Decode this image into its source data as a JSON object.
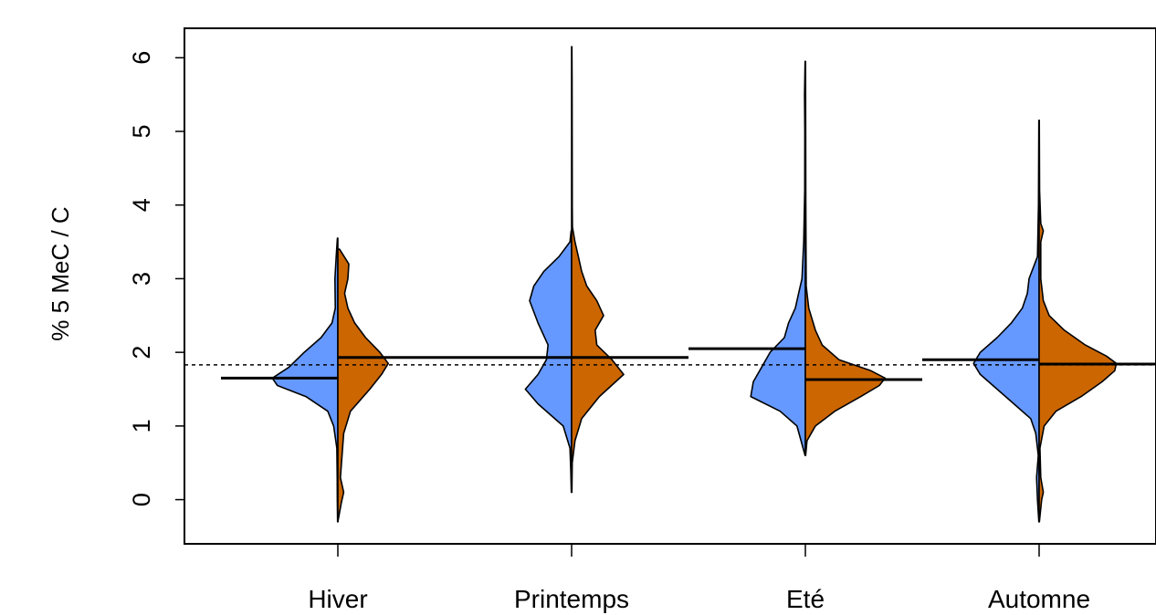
{
  "chart_data": {
    "type": "violin",
    "title": "",
    "xlabel": "",
    "ylabel": "% 5 MeC / C",
    "ylim": [
      -0.6,
      6.4
    ],
    "yticks": [
      "0",
      "1",
      "2",
      "3",
      "4",
      "5",
      "6"
    ],
    "categories": [
      "Hiver",
      "Printemps",
      "Eté",
      "Automne"
    ],
    "reference_line": 1.83,
    "grid": false,
    "colors": {
      "left": "#6699ff",
      "right": "#cc6600"
    },
    "halves": [
      {
        "category": "Hiver",
        "left": {
          "median": 1.65,
          "min": -0.3,
          "max": 3.55,
          "density": [
            [
              -0.3,
              0.003
            ],
            [
              0.0,
              0.006
            ],
            [
              0.3,
              0.008
            ],
            [
              0.7,
              0.012
            ],
            [
              1.0,
              0.05
            ],
            [
              1.2,
              0.12
            ],
            [
              1.4,
              0.38
            ],
            [
              1.55,
              0.72
            ],
            [
              1.65,
              0.78
            ],
            [
              1.8,
              0.58
            ],
            [
              2.0,
              0.4
            ],
            [
              2.2,
              0.2
            ],
            [
              2.4,
              0.07
            ],
            [
              2.6,
              0.03
            ],
            [
              3.0,
              0.035
            ],
            [
              3.3,
              0.02
            ],
            [
              3.55,
              0.005
            ]
          ]
        },
        "right": {
          "median": 1.93,
          "min": -0.3,
          "max": 3.4,
          "density": [
            [
              -0.3,
              0.0
            ],
            [
              -0.05,
              0.04
            ],
            [
              0.1,
              0.07
            ],
            [
              0.3,
              0.03
            ],
            [
              0.6,
              0.05
            ],
            [
              0.9,
              0.07
            ],
            [
              1.2,
              0.15
            ],
            [
              1.5,
              0.38
            ],
            [
              1.7,
              0.52
            ],
            [
              1.85,
              0.6
            ],
            [
              2.0,
              0.5
            ],
            [
              2.2,
              0.33
            ],
            [
              2.4,
              0.2
            ],
            [
              2.6,
              0.12
            ],
            [
              2.8,
              0.08
            ],
            [
              3.0,
              0.12
            ],
            [
              3.2,
              0.13
            ],
            [
              3.4,
              0.02
            ]
          ]
        }
      },
      {
        "category": "Printemps",
        "left": {
          "median": 1.93,
          "min": 0.1,
          "max": 3.65,
          "density": [
            [
              0.1,
              0.003
            ],
            [
              0.4,
              0.01
            ],
            [
              0.7,
              0.02
            ],
            [
              1.0,
              0.1
            ],
            [
              1.3,
              0.4
            ],
            [
              1.5,
              0.55
            ],
            [
              1.7,
              0.4
            ],
            [
              1.9,
              0.3
            ],
            [
              2.1,
              0.28
            ],
            [
              2.4,
              0.4
            ],
            [
              2.7,
              0.5
            ],
            [
              2.9,
              0.45
            ],
            [
              3.1,
              0.33
            ],
            [
              3.3,
              0.15
            ],
            [
              3.5,
              0.02
            ],
            [
              3.65,
              0.005
            ]
          ]
        },
        "right": {
          "median": 1.93,
          "min": 0.1,
          "max": 6.15,
          "density": [
            [
              0.1,
              0.003
            ],
            [
              0.5,
              0.008
            ],
            [
              0.8,
              0.04
            ],
            [
              1.1,
              0.12
            ],
            [
              1.4,
              0.33
            ],
            [
              1.7,
              0.62
            ],
            [
              1.9,
              0.48
            ],
            [
              2.1,
              0.3
            ],
            [
              2.3,
              0.28
            ],
            [
              2.5,
              0.38
            ],
            [
              2.7,
              0.3
            ],
            [
              2.9,
              0.18
            ],
            [
              3.1,
              0.12
            ],
            [
              3.3,
              0.08
            ],
            [
              3.5,
              0.04
            ],
            [
              3.7,
              0.01
            ],
            [
              4.0,
              0.008
            ],
            [
              5.0,
              0.006
            ],
            [
              5.7,
              0.005
            ],
            [
              6.15,
              0.003
            ]
          ]
        }
      },
      {
        "category": "Eté",
        "left": {
          "median": 2.05,
          "min": 0.6,
          "max": 5.95,
          "density": [
            [
              0.6,
              0.003
            ],
            [
              1.0,
              0.1
            ],
            [
              1.2,
              0.3
            ],
            [
              1.4,
              0.65
            ],
            [
              1.6,
              0.62
            ],
            [
              1.8,
              0.52
            ],
            [
              2.0,
              0.42
            ],
            [
              2.2,
              0.25
            ],
            [
              2.4,
              0.2
            ],
            [
              2.6,
              0.12
            ],
            [
              2.8,
              0.08
            ],
            [
              3.0,
              0.04
            ],
            [
              3.5,
              0.02
            ],
            [
              4.2,
              0.008
            ],
            [
              5.0,
              0.006
            ],
            [
              5.5,
              0.01
            ],
            [
              5.95,
              0.003
            ]
          ]
        },
        "right": {
          "median": 1.63,
          "min": 0.6,
          "max": 5.95,
          "density": [
            [
              0.6,
              0.003
            ],
            [
              0.8,
              0.02
            ],
            [
              1.0,
              0.12
            ],
            [
              1.2,
              0.35
            ],
            [
              1.4,
              0.66
            ],
            [
              1.55,
              0.88
            ],
            [
              1.65,
              0.95
            ],
            [
              1.75,
              0.78
            ],
            [
              1.9,
              0.4
            ],
            [
              2.1,
              0.2
            ],
            [
              2.3,
              0.12
            ],
            [
              2.6,
              0.04
            ],
            [
              2.9,
              0.01
            ],
            [
              4.0,
              0.005
            ],
            [
              5.95,
              0.002
            ]
          ]
        }
      },
      {
        "category": "Automne",
        "left": {
          "median": 1.9,
          "min": -0.3,
          "max": 5.15,
          "density": [
            [
              -0.3,
              0.003
            ],
            [
              0.0,
              0.02
            ],
            [
              0.3,
              0.03
            ],
            [
              0.6,
              0.01
            ],
            [
              0.9,
              0.04
            ],
            [
              1.1,
              0.1
            ],
            [
              1.3,
              0.3
            ],
            [
              1.5,
              0.5
            ],
            [
              1.7,
              0.7
            ],
            [
              1.85,
              0.78
            ],
            [
              2.0,
              0.7
            ],
            [
              2.2,
              0.5
            ],
            [
              2.4,
              0.33
            ],
            [
              2.6,
              0.2
            ],
            [
              2.8,
              0.14
            ],
            [
              3.0,
              0.12
            ],
            [
              3.3,
              0.02
            ],
            [
              4.0,
              0.008
            ],
            [
              5.15,
              0.003
            ]
          ]
        },
        "right": {
          "median": 1.84,
          "min": -0.3,
          "max": 5.15,
          "density": [
            [
              -0.3,
              0.003
            ],
            [
              0.0,
              0.03
            ],
            [
              0.1,
              0.05
            ],
            [
              0.3,
              0.02
            ],
            [
              0.7,
              0.01
            ],
            [
              1.0,
              0.06
            ],
            [
              1.2,
              0.2
            ],
            [
              1.4,
              0.5
            ],
            [
              1.6,
              0.75
            ],
            [
              1.75,
              0.9
            ],
            [
              1.85,
              0.92
            ],
            [
              1.95,
              0.8
            ],
            [
              2.1,
              0.55
            ],
            [
              2.3,
              0.3
            ],
            [
              2.5,
              0.12
            ],
            [
              2.7,
              0.05
            ],
            [
              3.0,
              0.02
            ],
            [
              3.5,
              0.02
            ],
            [
              3.65,
              0.05
            ],
            [
              3.75,
              0.02
            ],
            [
              4.2,
              0.005
            ],
            [
              5.15,
              0.002
            ]
          ]
        }
      }
    ]
  }
}
